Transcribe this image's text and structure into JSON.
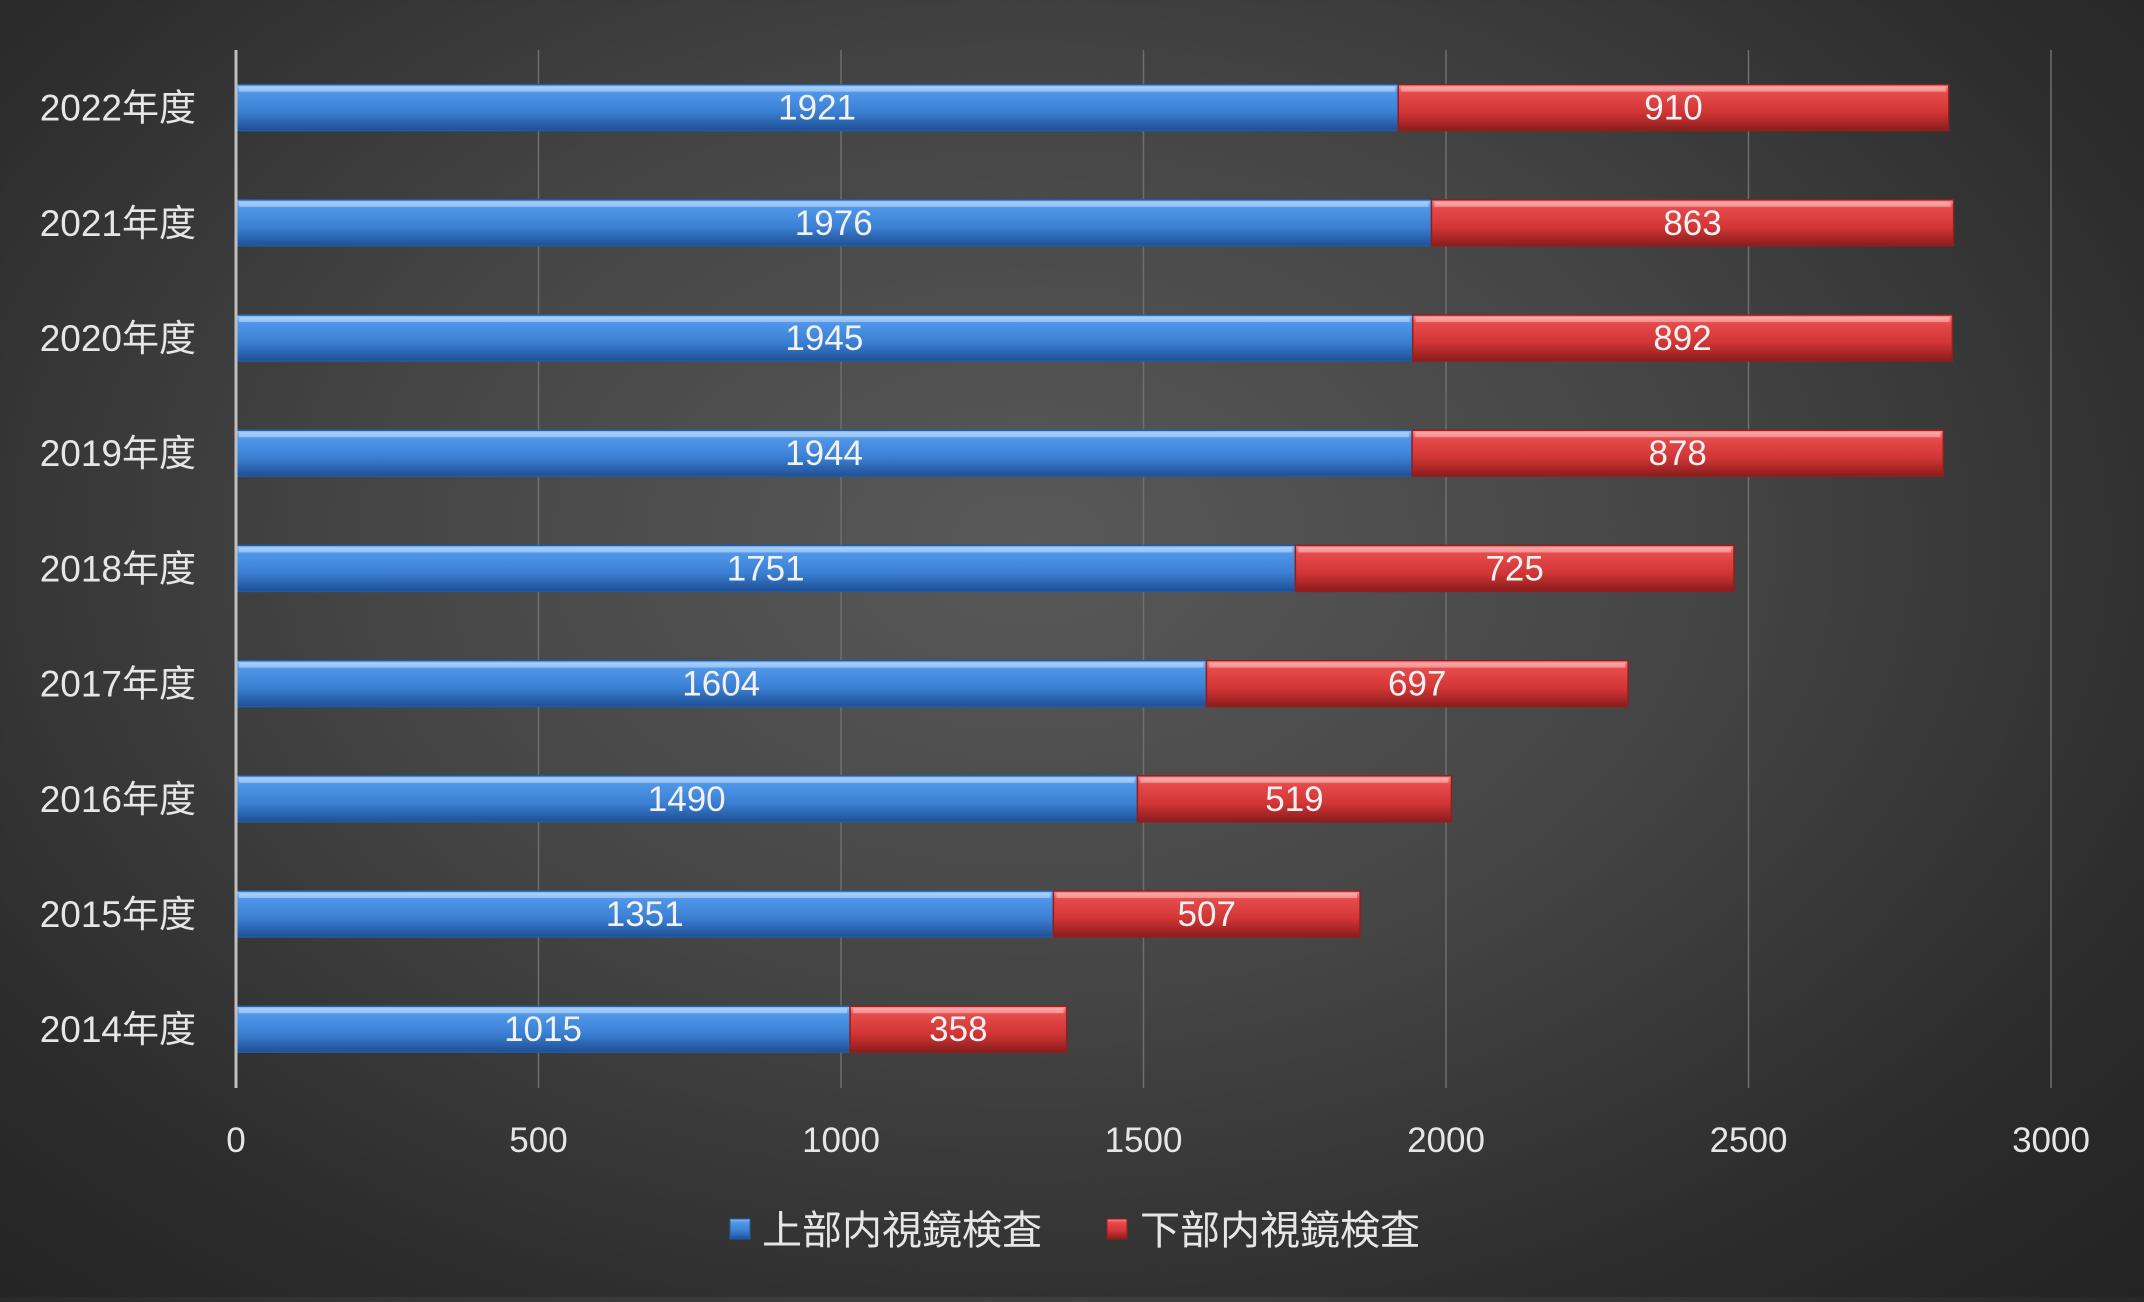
{
  "chart_data": {
    "type": "bar",
    "orientation": "horizontal",
    "stacked": true,
    "categories": [
      "2022年度",
      "2021年度",
      "2020年度",
      "2019年度",
      "2018年度",
      "2017年度",
      "2016年度",
      "2015年度",
      "2014年度"
    ],
    "series": [
      {
        "name": "上部内視鏡検査",
        "values": [
          1921,
          1976,
          1945,
          1944,
          1751,
          1604,
          1490,
          1351,
          1015
        ],
        "color": "#3f86d9"
      },
      {
        "name": "下部内視鏡検査",
        "values": [
          910,
          863,
          892,
          878,
          725,
          697,
          519,
          507,
          358
        ],
        "color": "#d93a3a"
      }
    ],
    "x_ticks": [
      "0",
      "500",
      "1000",
      "1500",
      "2000",
      "2500",
      "3000"
    ],
    "xlim": [
      0,
      3000
    ],
    "grid": true,
    "legend": "bottom",
    "data_labels": true,
    "background": "#3c3c3c"
  }
}
